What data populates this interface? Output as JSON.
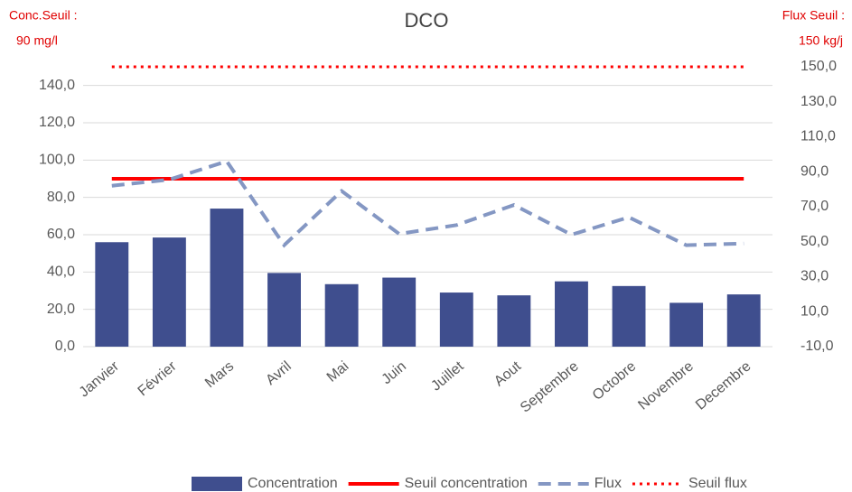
{
  "chart_data": {
    "type": "bar",
    "title": "DCO",
    "annotations": [
      "Conc.Seuil :",
      "90 mg/l",
      "Flux Seuil :",
      "150 kg/j"
    ],
    "categories": [
      "Janvier",
      "Février",
      "Mars",
      "Avril",
      "Mai",
      "Juin",
      "Juillet",
      "Aout",
      "Septembre",
      "Octobre",
      "Novembre",
      "Decembre"
    ],
    "series": [
      {
        "name": "Concentration",
        "type": "bar",
        "color": "#3f4e8e",
        "values": [
          56,
          58.5,
          74,
          39.5,
          33.5,
          37,
          29,
          27.5,
          35,
          32.5,
          23.5,
          28
        ]
      },
      {
        "name": "Seuil concentration",
        "type": "line",
        "dash": "solid",
        "color": "#ff0000",
        "values": [
          90,
          90,
          90,
          90,
          90,
          90,
          90,
          90,
          90,
          90,
          90,
          90
        ]
      },
      {
        "name": "Flux",
        "type": "line",
        "dash": "dashed",
        "color": "#8497c3",
        "axis": "y2",
        "values": [
          82,
          85.5,
          96,
          48,
          79,
          54.5,
          59.5,
          71,
          54,
          64,
          48,
          49
        ]
      },
      {
        "name": "Seuil flux",
        "type": "line",
        "dash": "dotted",
        "color": "#ff0000",
        "axis": "y2",
        "values": [
          150,
          150,
          150,
          150,
          150,
          150,
          150,
          150,
          150,
          150,
          150,
          150
        ]
      }
    ],
    "ylim": [
      0,
      150
    ],
    "yticks": [
      {
        "value": 0,
        "label": "0,0"
      },
      {
        "value": 20,
        "label": "20,0"
      },
      {
        "value": 40,
        "label": "40,0"
      },
      {
        "value": 60,
        "label": "60,0"
      },
      {
        "value": 80,
        "label": "80,0"
      },
      {
        "value": 100,
        "label": "100,0"
      },
      {
        "value": 120,
        "label": "120,0"
      },
      {
        "value": 140,
        "label": "140,0"
      }
    ],
    "y2lim": [
      -10,
      150
    ],
    "y2ticks": [
      {
        "value": -10,
        "label": "-10,0"
      },
      {
        "value": 10,
        "label": "10,0"
      },
      {
        "value": 30,
        "label": "30,0"
      },
      {
        "value": 50,
        "label": "50,0"
      },
      {
        "value": 70,
        "label": "70,0"
      },
      {
        "value": 90,
        "label": "90,0"
      },
      {
        "value": 110,
        "label": "110,0"
      },
      {
        "value": 130,
        "label": "130,0"
      },
      {
        "value": 150,
        "label": "150,0"
      }
    ],
    "grid": true
  }
}
